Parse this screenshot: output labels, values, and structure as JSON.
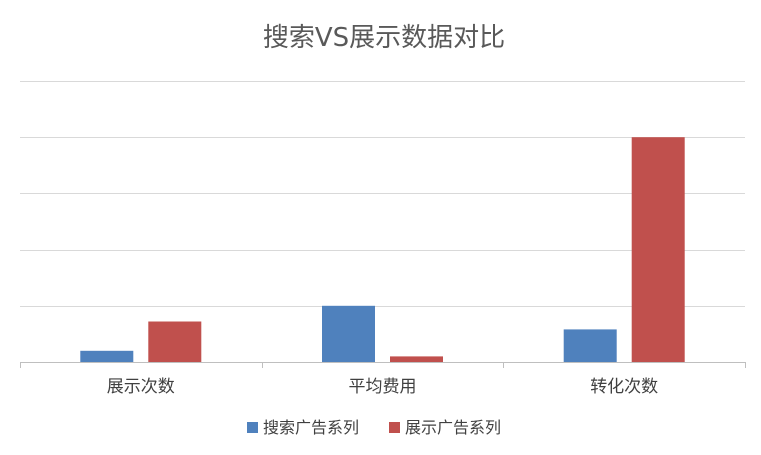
{
  "chart_data": {
    "type": "bar",
    "title": "搜索VS展示数据对比",
    "xlabel": "",
    "ylabel": "",
    "categories": [
      "展示次数",
      "平均费用",
      "转化次数"
    ],
    "series": [
      {
        "name": "搜索广告系列",
        "color": "#4F81BD",
        "values": [
          0.2,
          1.0,
          0.58
        ]
      },
      {
        "name": "展示广告系列",
        "color": "#C0504D",
        "values": [
          0.72,
          0.1,
          4.0
        ]
      }
    ],
    "ylim": [
      0,
      5
    ],
    "y_major_step": 1,
    "grid": true,
    "y_tick_labels_visible": false,
    "legend_position": "bottom",
    "grid_color": "#d9d9d9",
    "axis_color": "#bfbfbf"
  }
}
